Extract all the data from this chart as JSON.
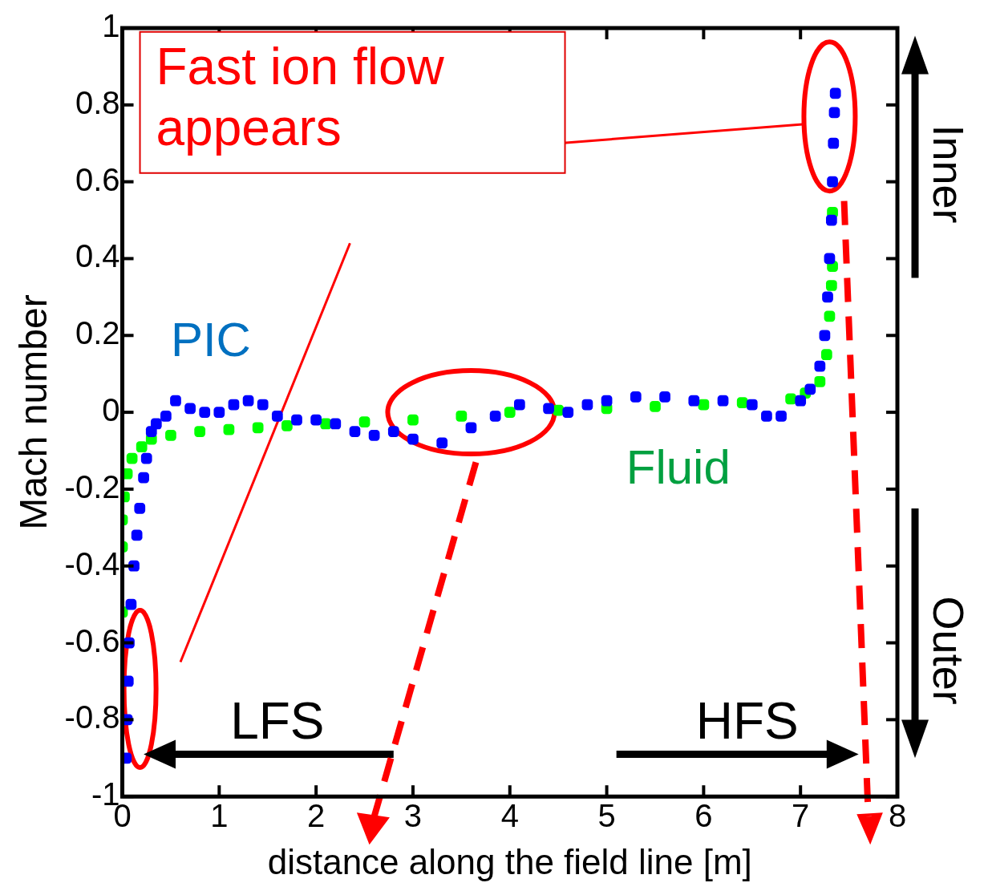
{
  "chart_data": {
    "type": "scatter",
    "xlabel": "distance along the field line [m]",
    "ylabel": "Mach number",
    "xlim": [
      0,
      8
    ],
    "xticks": [
      0,
      1,
      2,
      3,
      4,
      5,
      6,
      7,
      8
    ],
    "ylim": [
      -1,
      1
    ],
    "yticks": [
      -1,
      -0.8,
      -0.6,
      -0.4,
      -0.2,
      0,
      0.2,
      0.4,
      0.6,
      0.8,
      1
    ],
    "grid": false,
    "legend": false,
    "marker": "square",
    "annotations": [
      "Fast ion flow appears",
      "LFS",
      "HFS",
      "Inner",
      "Outer"
    ],
    "series": [
      {
        "name": "PIC",
        "color": "#0000ff",
        "x": [
          0.04,
          0.05,
          0.06,
          0.07,
          0.09,
          0.12,
          0.15,
          0.18,
          0.22,
          0.25,
          0.3,
          0.35,
          0.45,
          0.55,
          0.7,
          0.85,
          1.0,
          1.15,
          1.3,
          1.45,
          1.6,
          1.8,
          2.0,
          2.2,
          2.4,
          2.6,
          2.8,
          3.0,
          3.3,
          3.6,
          3.85,
          4.1,
          4.4,
          4.6,
          4.8,
          5.0,
          5.3,
          5.6,
          5.9,
          6.2,
          6.5,
          6.65,
          6.8,
          7.0,
          7.1,
          7.2,
          7.25,
          7.28,
          7.3,
          7.32,
          7.33,
          7.34,
          7.35,
          7.36
        ],
        "values": [
          -0.9,
          -0.8,
          -0.7,
          -0.6,
          -0.5,
          -0.4,
          -0.32,
          -0.25,
          -0.17,
          -0.12,
          -0.05,
          -0.03,
          -0.01,
          0.03,
          0.01,
          0,
          0,
          0.02,
          0.03,
          0.02,
          -0.01,
          -0.02,
          -0.02,
          -0.03,
          -0.05,
          -0.06,
          -0.05,
          -0.07,
          -0.08,
          -0.04,
          -0.01,
          0.02,
          0.01,
          0,
          0.02,
          0.03,
          0.04,
          0.04,
          0.03,
          0.03,
          0.02,
          -0.01,
          -0.01,
          0.03,
          0.06,
          0.12,
          0.2,
          0.3,
          0.4,
          0.5,
          0.6,
          0.7,
          0.78,
          0.83
        ]
      },
      {
        "name": "Fluid",
        "color": "#00ff00",
        "x": [
          0,
          0,
          0,
          0.02,
          0.05,
          0.1,
          0.2,
          0.3,
          0.5,
          0.8,
          1.1,
          1.4,
          1.7,
          2.1,
          2.5,
          3.0,
          3.5,
          4.0,
          4.5,
          5.0,
          5.5,
          6.0,
          6.4,
          6.9,
          7.05,
          7.2,
          7.27,
          7.3,
          7.32,
          7.33,
          7.33
        ],
        "values": [
          -0.52,
          -0.35,
          -0.28,
          -0.22,
          -0.16,
          -0.12,
          -0.09,
          -0.07,
          -0.06,
          -0.05,
          -0.045,
          -0.04,
          -0.035,
          -0.03,
          -0.025,
          -0.02,
          -0.01,
          0,
          0.005,
          0.01,
          0.015,
          0.02,
          0.025,
          0.035,
          0.05,
          0.08,
          0.15,
          0.25,
          0.33,
          0.38,
          0.52
        ]
      }
    ]
  }
}
